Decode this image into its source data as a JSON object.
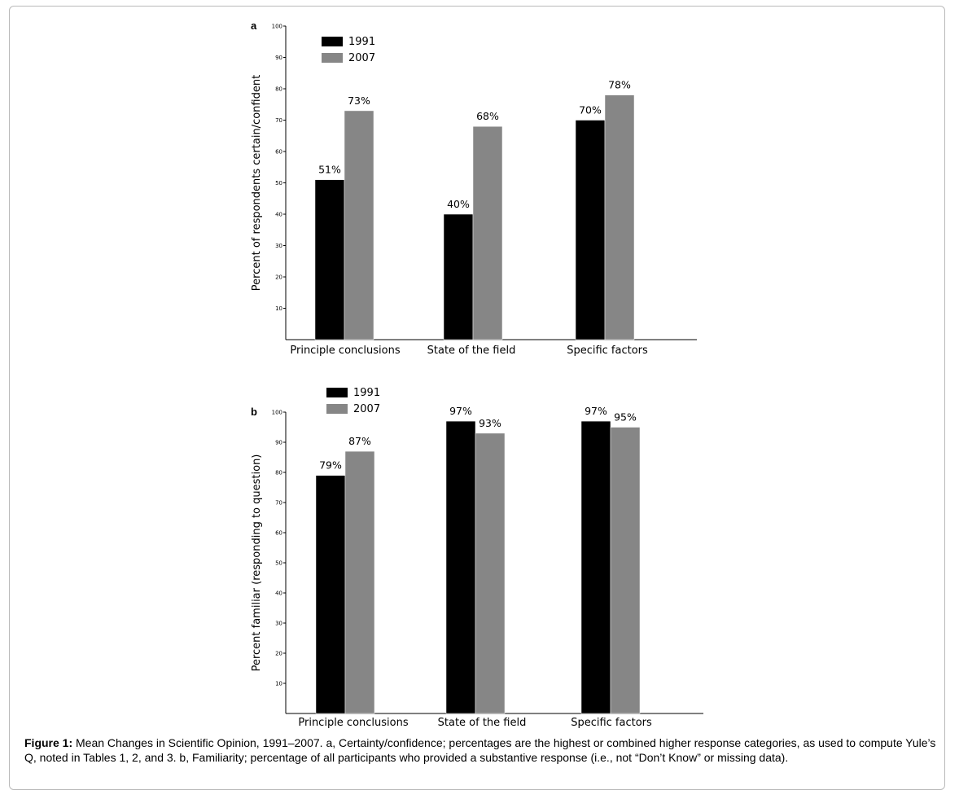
{
  "caption": {
    "label": "Figure 1:",
    "text": "Mean Changes in Scientific Opinion, 1991–2007. a, Certainty/confidence; percentages are the highest or combined higher response categories, as used to compute Yule’s Q, noted in Tables 1, 2, and 3. b, Familiarity; percentage of all participants who provided a substantive response (i.e., not “Don’t Know” or missing data)."
  },
  "colors": {
    "1991": "#000000",
    "2007": "#868686"
  },
  "chart_data": [
    {
      "panel": "a",
      "type": "bar",
      "ylabel": "Percent of respondents certain/confident",
      "xlabel": "",
      "ylim": [
        0,
        100
      ],
      "yticks": [
        10,
        20,
        30,
        40,
        50,
        60,
        70,
        80,
        90,
        100
      ],
      "categories": [
        "Principle conclusions",
        "State of the field",
        "Specific factors"
      ],
      "series": [
        {
          "name": "1991",
          "values": [
            51,
            40,
            70
          ],
          "labels": [
            "51%",
            "40%",
            "70%"
          ]
        },
        {
          "name": "2007",
          "values": [
            73,
            68,
            78
          ],
          "labels": [
            "73%",
            "68%",
            "78%"
          ]
        }
      ],
      "legend": "top-left",
      "grid": false
    },
    {
      "panel": "b",
      "type": "bar",
      "ylabel": "Percent familiar (responding to question)",
      "xlabel": "",
      "ylim": [
        0,
        100
      ],
      "yticks": [
        10,
        20,
        30,
        40,
        50,
        60,
        70,
        80,
        90,
        100
      ],
      "categories": [
        "Principle conclusions",
        "State of the field",
        "Specific factors"
      ],
      "series": [
        {
          "name": "1991",
          "values": [
            79,
            97,
            97
          ],
          "labels": [
            "79%",
            "97%",
            "97%"
          ]
        },
        {
          "name": "2007",
          "values": [
            87,
            93,
            95
          ],
          "labels": [
            "87%",
            "93%",
            "95%"
          ]
        }
      ],
      "legend": "top-left",
      "grid": false
    }
  ]
}
